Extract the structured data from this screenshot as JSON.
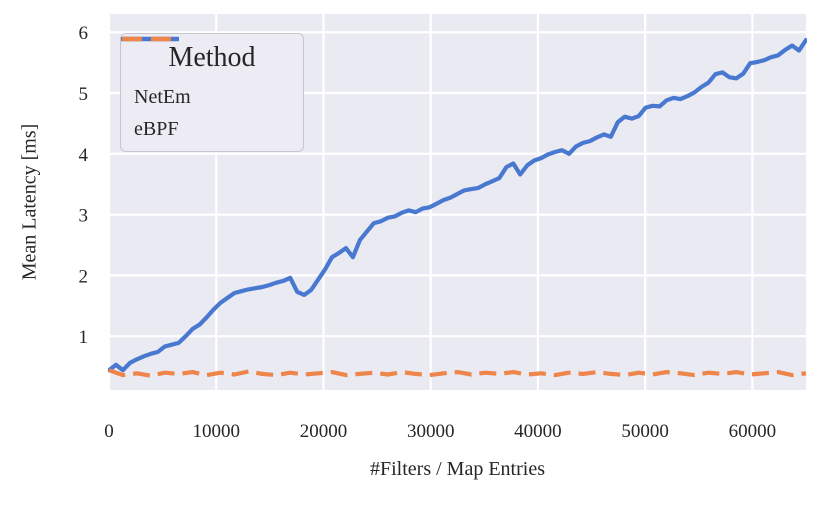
{
  "colors": {
    "plot_background": "#eaeaf2",
    "grid": "#ffffff",
    "netem_blue": "#4878cf",
    "ebpf_orange": "#ee854a",
    "text": "#262626",
    "legend_face": "#edecf4",
    "legend_edge": "#c6c6cd"
  },
  "chart_data": {
    "type": "line",
    "title": "",
    "xlabel": "#Filters / Map Entries",
    "ylabel": "Mean Latency [ms]",
    "legend_title": "Method",
    "legend_position": "upper left",
    "grid": true,
    "xlim": [
      0,
      65000
    ],
    "ylim": [
      0.1,
      6.3
    ],
    "x_ticks": [
      0,
      10000,
      20000,
      30000,
      40000,
      50000,
      60000
    ],
    "y_ticks": [
      1,
      2,
      3,
      4,
      5,
      6
    ],
    "series": [
      {
        "name": "NetEm",
        "color": "#4878cf",
        "style": "solid",
        "x": [
          0,
          650,
          1300,
          1950,
          2600,
          3250,
          3900,
          4550,
          5200,
          5850,
          6500,
          7150,
          7800,
          8450,
          9100,
          9750,
          10400,
          11050,
          11700,
          12350,
          13000,
          13650,
          14300,
          14950,
          15600,
          16250,
          16900,
          17550,
          18200,
          18850,
          19500,
          20150,
          20800,
          21450,
          22100,
          22750,
          23400,
          24050,
          24700,
          25350,
          26000,
          26650,
          27300,
          27950,
          28600,
          29250,
          29900,
          30550,
          31200,
          31850,
          32500,
          33150,
          33800,
          34450,
          35100,
          35750,
          36400,
          37050,
          37700,
          38350,
          39000,
          39650,
          40300,
          40950,
          41600,
          42250,
          42900,
          43550,
          44200,
          44850,
          45500,
          46150,
          46800,
          47450,
          48100,
          48750,
          49400,
          50050,
          50700,
          51350,
          52000,
          52650,
          53300,
          53950,
          54600,
          55250,
          55900,
          56550,
          57200,
          57850,
          58500,
          59150,
          59800,
          60450,
          61100,
          61750,
          62400,
          63050,
          63700,
          64350,
          65000
        ],
        "values": [
          0.44,
          0.53,
          0.44,
          0.56,
          0.62,
          0.67,
          0.71,
          0.74,
          0.83,
          0.86,
          0.89,
          1.0,
          1.12,
          1.19,
          1.31,
          1.44,
          1.55,
          1.63,
          1.71,
          1.74,
          1.77,
          1.79,
          1.81,
          1.84,
          1.88,
          1.91,
          1.96,
          1.73,
          1.68,
          1.76,
          1.93,
          2.1,
          2.3,
          2.37,
          2.45,
          2.3,
          2.58,
          2.72,
          2.86,
          2.89,
          2.95,
          2.97,
          3.03,
          3.07,
          3.04,
          3.1,
          3.12,
          3.18,
          3.24,
          3.28,
          3.34,
          3.4,
          3.42,
          3.44,
          3.5,
          3.55,
          3.6,
          3.78,
          3.84,
          3.66,
          3.81,
          3.89,
          3.93,
          3.99,
          4.03,
          4.06,
          4.0,
          4.12,
          4.18,
          4.21,
          4.27,
          4.32,
          4.28,
          4.52,
          4.61,
          4.58,
          4.62,
          4.76,
          4.79,
          4.78,
          4.88,
          4.92,
          4.9,
          4.95,
          5.01,
          5.1,
          5.17,
          5.31,
          5.34,
          5.26,
          5.24,
          5.32,
          5.49,
          5.51,
          5.54,
          5.59,
          5.62,
          5.71,
          5.78,
          5.7,
          5.87
        ]
      },
      {
        "name": "eBPF",
        "color": "#ee854a",
        "style": "dashed",
        "x": [
          0,
          1300,
          2600,
          3900,
          5200,
          6500,
          7800,
          9100,
          10400,
          11700,
          13000,
          14300,
          15600,
          16900,
          18200,
          19500,
          20800,
          22100,
          23400,
          24700,
          26000,
          27300,
          28600,
          29900,
          31200,
          32500,
          33800,
          35100,
          36400,
          37700,
          39000,
          40300,
          41600,
          42900,
          44200,
          45500,
          46800,
          48100,
          49400,
          50700,
          52000,
          53300,
          54600,
          55900,
          57200,
          58500,
          59800,
          61100,
          62400,
          63700,
          65000
        ],
        "values": [
          0.44,
          0.36,
          0.39,
          0.35,
          0.4,
          0.38,
          0.41,
          0.36,
          0.4,
          0.37,
          0.42,
          0.38,
          0.36,
          0.4,
          0.37,
          0.39,
          0.41,
          0.36,
          0.38,
          0.4,
          0.37,
          0.41,
          0.38,
          0.36,
          0.39,
          0.41,
          0.37,
          0.4,
          0.38,
          0.41,
          0.37,
          0.39,
          0.36,
          0.4,
          0.38,
          0.41,
          0.38,
          0.36,
          0.4,
          0.37,
          0.41,
          0.39,
          0.36,
          0.4,
          0.38,
          0.41,
          0.37,
          0.39,
          0.41,
          0.36,
          0.39
        ]
      }
    ]
  }
}
